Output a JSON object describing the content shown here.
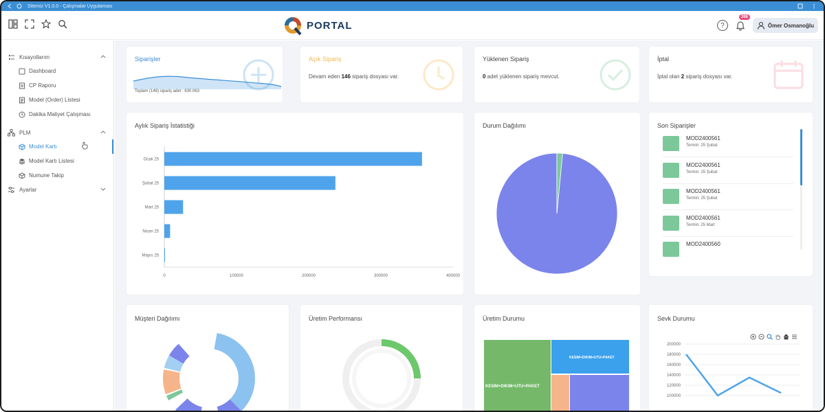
{
  "window": {
    "title": "Sitemiz V1.0.0 - Çalışmalar Uygulaması"
  },
  "topbar": {
    "logo_text": "PORTAL",
    "notifications_count": "398",
    "user_name": "Ömer Osmanoğlu"
  },
  "sidebar": {
    "groups": [
      {
        "label": "Kısayollarım",
        "items": [
          "Dashboard",
          "CP Raporu",
          "Model (Order) Listesi",
          "Dakika Maliyet Çalışması"
        ]
      },
      {
        "label": "PLM",
        "items": [
          "Model Kartı",
          "Model Kartı Listesi",
          "Numune Takip"
        ]
      },
      {
        "label": "Ayarlar",
        "items": []
      }
    ],
    "active_item": "Model Kartı"
  },
  "stats": {
    "orders": {
      "title": "Siparişler",
      "footer": "Toplam (148) sipariş adet : 630.063"
    },
    "open": {
      "title": "Açık Sipariş",
      "pre": "Devam eden ",
      "value": "146",
      "post": " sipariş dosyası var."
    },
    "loaded": {
      "title": "Yüklenen Sipariş",
      "value": "0",
      "post": " adet yüklenen sipariş mevcut."
    },
    "cancel": {
      "title": "İptal",
      "pre": "İptal olan ",
      "value": "2",
      "post": " sipariş dosyası var."
    }
  },
  "monthly_chart_title": "Aylık Sipariş İstatistiği",
  "status_chart_title": "Durum Dağılımı",
  "recent_orders": {
    "title": "Son Siparişler",
    "items": [
      {
        "code": "MOD2400561",
        "due": "Termin: 25 Şubat"
      },
      {
        "code": "MOD2400561",
        "due": "Termin: 25 Şubat"
      },
      {
        "code": "MOD2400561",
        "due": "Termin: 25 Şubat"
      },
      {
        "code": "MOD2400561",
        "due": "Termin: 25 Mart"
      },
      {
        "code": "MOD2400560",
        "due": ""
      }
    ]
  },
  "bottom_cards": {
    "customer": "Müşteri Dağılımı",
    "performance": "Üretim Performansı",
    "production": "Üretim Durumu",
    "shipment": "Sevk Durumu"
  },
  "production_labels": {
    "big": "KESIM+DIKIM+UTU+PAKET",
    "small": "KESIM+DIKIM+UTU+PAKET"
  },
  "colors": {
    "accent": "#3b8ed3",
    "bar": "#4ea3ea",
    "pie_main": "#7b84ea",
    "pie_slice": "#7cc89a",
    "order_swatch": "#7cc89a",
    "open_title": "#f2b94f",
    "orders_title": "#3b8ed3"
  },
  "chart_data": [
    {
      "type": "bar",
      "title": "Aylık Sipariş İstatistiği",
      "orientation": "horizontal",
      "categories": [
        "Ocak 25",
        "Şubat 25",
        "Mart 25",
        "Nisan 25",
        "Mayıs 25"
      ],
      "values": [
        357000,
        237000,
        26000,
        8000,
        1000
      ],
      "xlim": [
        0,
        400000
      ],
      "xticks": [
        "0",
        "100000",
        "200000",
        "300000",
        "400000"
      ]
    },
    {
      "type": "pie",
      "title": "Durum Dağılımı",
      "values": [
        98.5,
        1.5
      ]
    },
    {
      "type": "line",
      "title": "Sevk Durumu",
      "y_ticks": [
        "200000",
        "180000",
        "160000",
        "140000",
        "120000",
        "100000"
      ],
      "ylim": [
        100000,
        200000
      ],
      "values": [
        180000,
        100000,
        135000,
        105000
      ]
    }
  ]
}
